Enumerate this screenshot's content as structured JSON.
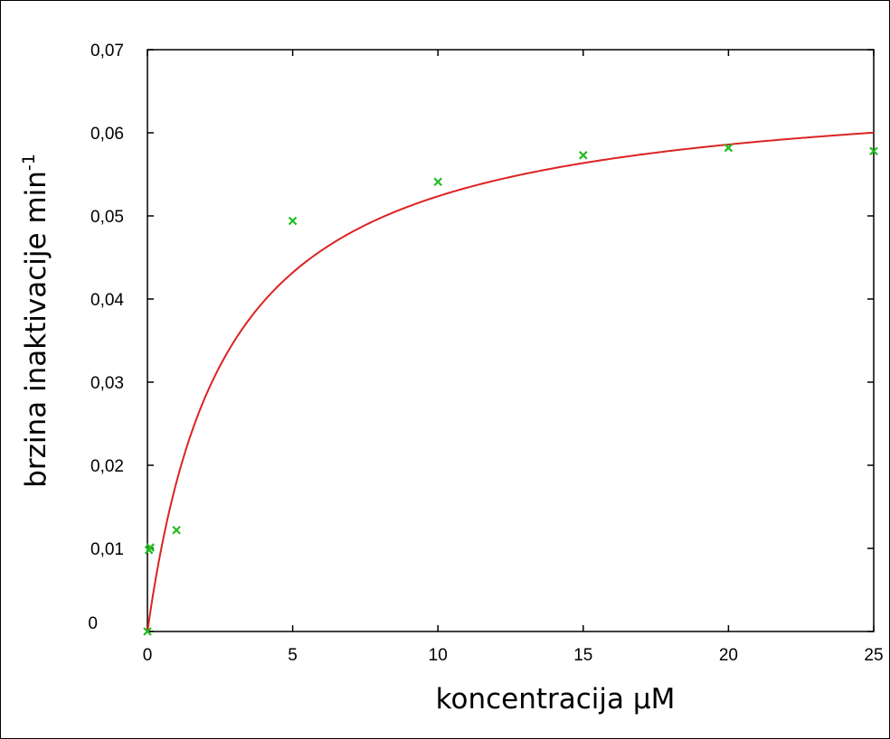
{
  "chart_data": {
    "type": "scatter",
    "xlabel": "koncentracija µM",
    "ylabel": "brzina inaktivacije min",
    "ylabel_superscript": "-1",
    "xlim": [
      0,
      25
    ],
    "ylim": [
      0,
      0.07
    ],
    "x_ticks": [
      0,
      5,
      10,
      15,
      20,
      25
    ],
    "x_tick_labels": [
      "0",
      "5",
      "10",
      "15",
      "20",
      "25"
    ],
    "y_ticks": [
      0,
      0.01,
      0.02,
      0.03,
      0.04,
      0.05,
      0.06,
      0.07
    ],
    "y_tick_labels": [
      "0",
      "0,01",
      "0,02",
      "0,03",
      "0,04",
      "0,05",
      "0,06",
      "0,07"
    ],
    "grid": false,
    "series": [
      {
        "kind": "points",
        "marker": "x",
        "color": "#22bb22",
        "x": [
          0,
          0.05,
          0.1,
          1,
          5,
          10,
          15,
          20,
          25
        ],
        "y": [
          0,
          0.0098,
          0.0101,
          0.0122,
          0.0494,
          0.0541,
          0.0573,
          0.0582,
          0.0578
        ]
      },
      {
        "kind": "fit-line",
        "color": "#dd2222",
        "model": "hyperbolic",
        "vmax": 0.0665,
        "k": 2.7
      }
    ]
  }
}
